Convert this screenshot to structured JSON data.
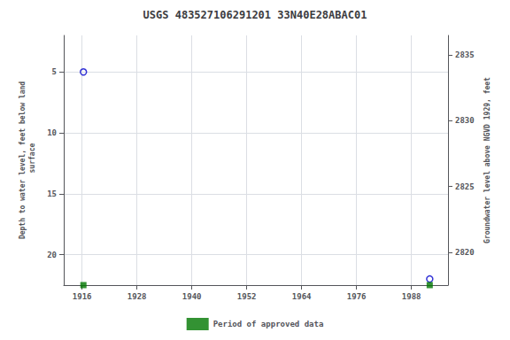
{
  "chart_data": {
    "type": "scatter",
    "title": "USGS 483527106291201 33N40E28ABAC01",
    "ylabel": "Depth to water level, feet below land\n surface",
    "y2label": "Groundwater level above NGVD 1929, feet",
    "xlim": [
      1912,
      1996
    ],
    "xticks": [
      1916,
      1928,
      1940,
      1952,
      1964,
      1976,
      1988
    ],
    "ylim": [
      22.5,
      2.0
    ],
    "yticks": [
      5,
      10,
      15,
      20
    ],
    "y2lim": [
      2817.5,
      2836.5
    ],
    "y2ticks": [
      2820,
      2825,
      2830,
      2835
    ],
    "grid": true,
    "legend": "bottom",
    "series": [
      {
        "color": "#0000cc",
        "marker": "open_circle",
        "x": [
          1916.3,
          1992.0
        ],
        "values": [
          5.0,
          22.0
        ]
      },
      {
        "name": "Period of approved data",
        "color": "#007700",
        "marker": "square",
        "x": [
          1916.3,
          1992.0
        ],
        "values": [
          22.5,
          22.5
        ]
      }
    ]
  }
}
